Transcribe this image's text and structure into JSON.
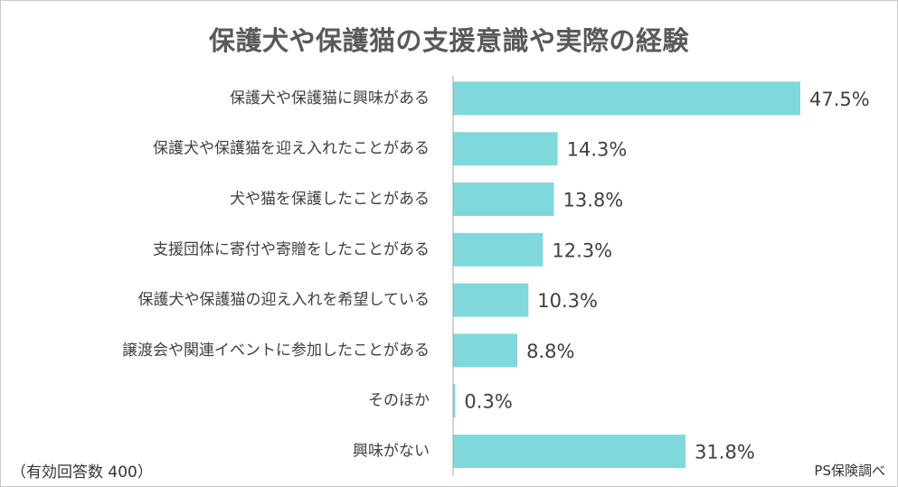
{
  "note": "（有効回答数 400）",
  "source": "PS保険調べ",
  "colors": {
    "bar": "#7fd8dc",
    "axis": "#a6a6a6",
    "title": "#595959"
  },
  "chart_data": {
    "type": "bar",
    "orientation": "horizontal",
    "title": "保護犬や保護猫の支援意識や実際の経験",
    "xlabel": "",
    "ylabel": "",
    "xlim": [
      0,
      50
    ],
    "grid": false,
    "legend": "none",
    "categories": [
      "保護犬や保護猫に興味がある",
      "保護犬や保護猫を迎え入れたことがある",
      "犬や猫を保護したことがある",
      "支援団体に寄付や寄贈をしたことがある",
      "保護犬や保護猫の迎え入れを希望している",
      "譲渡会や関連イベントに参加したことがある",
      "そのほか",
      "興味がない"
    ],
    "values": [
      47.5,
      14.3,
      13.8,
      12.3,
      10.3,
      8.8,
      0.3,
      31.8
    ],
    "value_labels": [
      "47.5%",
      "14.3%",
      "13.8%",
      "12.3%",
      "10.3%",
      "8.8%",
      "0.3%",
      "31.8%"
    ]
  }
}
